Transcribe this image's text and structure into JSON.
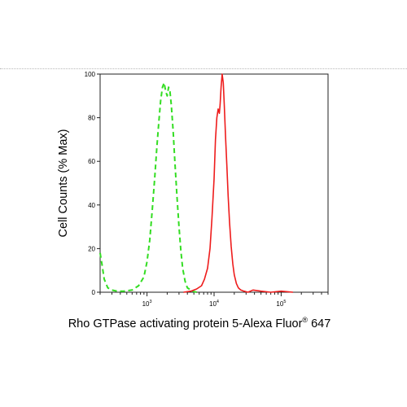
{
  "chart_data": {
    "type": "line",
    "title": "",
    "xlabel": "Rho GTPase activating protein 5-Alexa Fluor",
    "xlabel_superscript": "®",
    "xlabel_suffix": " 647",
    "ylabel": "Cell Counts (% Max)",
    "xscale": "log",
    "xlim": [
      200,
      500000
    ],
    "ylim": [
      0,
      100
    ],
    "x_ticks": [
      {
        "base": "10",
        "exp": "3",
        "value": 1000
      },
      {
        "base": "10",
        "exp": "4",
        "value": 10000
      },
      {
        "base": "10",
        "exp": "5",
        "value": 100000
      }
    ],
    "y_ticks": [
      "0",
      "20",
      "40",
      "60",
      "80",
      "100"
    ],
    "grid": false,
    "legend": "none",
    "series": [
      {
        "color": "#33dd22",
        "style": "dashed",
        "x": [
          200,
          215,
          230,
          260,
          300,
          360,
          450,
          600,
          750,
          900,
          1000,
          1100,
          1200,
          1300,
          1400,
          1500,
          1600,
          1700,
          1800,
          1900,
          2000,
          2100,
          2200,
          2300,
          2450,
          2600,
          2800,
          3000,
          3200,
          3400,
          3700,
          4000,
          4500,
          5000,
          5500
        ],
        "y": [
          18,
          12,
          6,
          2,
          1,
          0.5,
          0.5,
          1,
          3,
          7,
          14,
          24,
          38,
          52,
          66,
          78,
          88,
          94,
          96,
          92,
          90,
          94,
          92,
          86,
          74,
          60,
          44,
          30,
          19,
          11,
          5,
          2,
          1,
          0.3,
          0
        ]
      },
      {
        "color": "#ee1c1c",
        "style": "solid",
        "x": [
          3500,
          4500,
          5500,
          6500,
          7200,
          8000,
          8700,
          9300,
          10000,
          10500,
          11000,
          11500,
          12000,
          12300,
          12700,
          13200,
          13700,
          14200,
          14800,
          15500,
          16200,
          17000,
          18000,
          19000,
          20000,
          21500,
          23000,
          25000,
          28000,
          32000,
          38000,
          50000,
          70000,
          100000,
          150000
        ],
        "y": [
          0,
          0.5,
          1.5,
          3,
          6,
          11,
          20,
          34,
          52,
          70,
          80,
          84,
          82,
          86,
          94,
          100,
          96,
          86,
          72,
          58,
          44,
          32,
          21,
          13,
          8,
          4,
          2,
          1,
          0.5,
          0,
          1,
          0.5,
          0,
          0.5,
          0
        ]
      }
    ]
  }
}
